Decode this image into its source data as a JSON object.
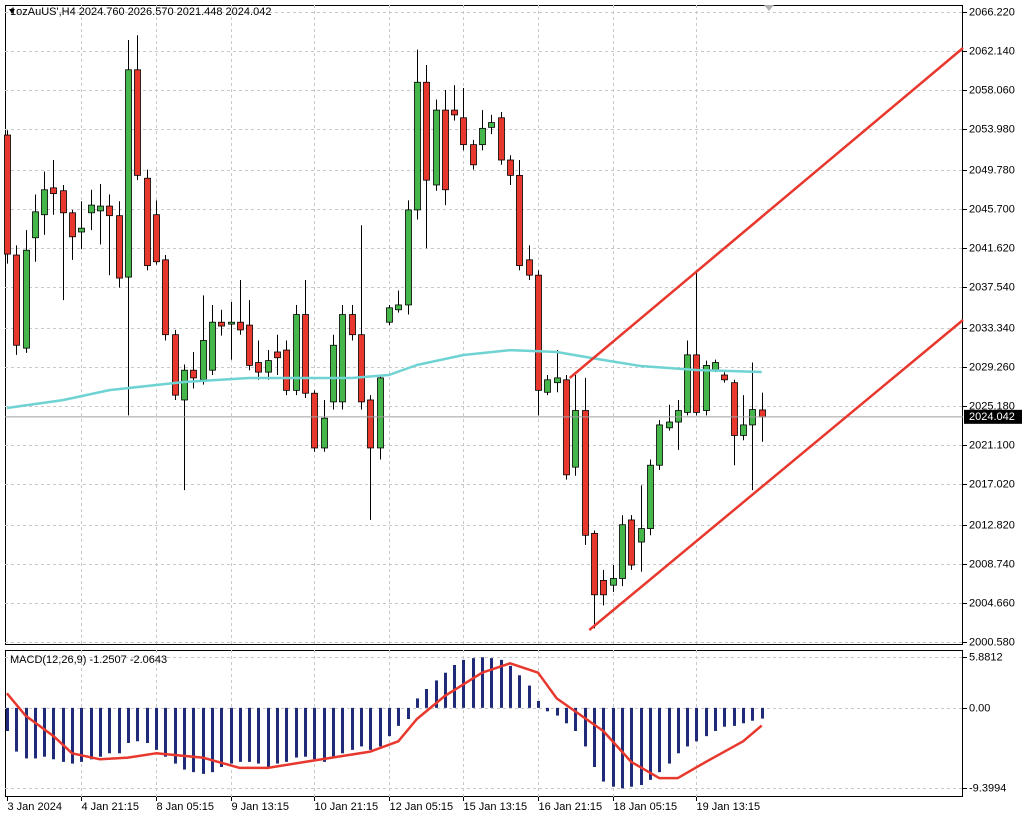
{
  "chart_data": [
    {
      "type": "candlestick",
      "title": "1ozAuUS',H4  2024.760 2026.570 2021.448 2024.042",
      "up_color": "#45b649",
      "down_color": "#e8372c",
      "xlim": [
        -0.2,
        102.6
      ],
      "ylim": [
        2000.27,
        2066.95
      ],
      "grid": true,
      "yticks": [
        {
          "value": 2066.22,
          "label": "2066.220"
        },
        {
          "value": 2062.14,
          "label": "2062.140"
        },
        {
          "value": 2058.06,
          "label": "2058.060"
        },
        {
          "value": 2053.98,
          "label": "2053.980"
        },
        {
          "value": 2049.78,
          "label": "2049.780"
        },
        {
          "value": 2045.7,
          "label": "2045.700"
        },
        {
          "value": 2041.62,
          "label": "2041.620"
        },
        {
          "value": 2037.54,
          "label": "2037.540"
        },
        {
          "value": 2033.34,
          "label": "2033.340"
        },
        {
          "value": 2029.26,
          "label": "2029.260"
        },
        {
          "value": 2025.18,
          "label": "2025.180"
        },
        {
          "value": 2021.1,
          "label": "2021.100"
        },
        {
          "value": 2017.02,
          "label": "2017.020"
        },
        {
          "value": 2012.82,
          "label": "2012.820"
        },
        {
          "value": 2008.74,
          "label": "2008.740"
        },
        {
          "value": 2004.66,
          "label": "2004.660"
        },
        {
          "value": 2000.58,
          "label": "2000.580"
        }
      ],
      "xticks": [
        {
          "value": 0,
          "label": "3 Jan 2024"
        },
        {
          "value": 8,
          "label": "4 Jan 21:15"
        },
        {
          "value": 16,
          "label": "8 Jan 05:15"
        },
        {
          "value": 24,
          "label": "9 Jan 13:15"
        },
        {
          "value": 33,
          "label": "10 Jan 21:15"
        },
        {
          "value": 41,
          "label": "12 Jan 05:15"
        },
        {
          "value": 49,
          "label": "15 Jan 13:15"
        },
        {
          "value": 57,
          "label": "16 Jan 21:15"
        },
        {
          "value": 65,
          "label": "18 Jan 05:15"
        },
        {
          "value": 74,
          "label": "19 Jan 13:15"
        }
      ],
      "last_price": 2024.042,
      "open": [
        2053.4,
        2040.9,
        2031.2,
        2042.7,
        2045.1,
        2047.9,
        2047.6,
        2045.3,
        2043.3,
        2045.3,
        2045.5,
        2046.0,
        2045.0,
        2038.6,
        2060.2,
        2048.9,
        2045.1,
        2040.4,
        2032.6,
        2025.8,
        2028.9,
        2027.9,
        2028.9,
        2033.9,
        2033.7,
        2033.9,
        2033.6,
        2029.7,
        2028.7,
        2030.8,
        2031.0,
        2026.8,
        2034.7,
        2026.5,
        2020.8,
        2025.6,
        2025.6,
        2034.7,
        2032.6,
        2025.8,
        2020.8,
        2033.9,
        2035.2,
        2035.7,
        2045.6,
        2058.9,
        2048.2,
        2056.0,
        2056.0,
        2055.2,
        2052.4,
        2052.4,
        2054.2,
        2055.2,
        2050.8,
        2049.2,
        2040.4,
        2038.8,
        2026.6,
        2027.6,
        2027.9,
        2018.8,
        2024.7,
        2011.9,
        2007.0,
        2006.5,
        2007.2,
        2013.3,
        2011.0,
        2012.4,
        2019.0,
        2022.9,
        2023.5,
        2024.5,
        2030.5,
        2024.7,
        2028.9,
        2028.4,
        2027.6,
        2022.1,
        2023.2,
        2024.76
      ],
      "high": [
        2053.9,
        2041.9,
        2043.5,
        2047.2,
        2049.6,
        2050.8,
        2048.2,
        2045.6,
        2046.5,
        2047.7,
        2048.3,
        2047.2,
        2046.5,
        2063.3,
        2063.8,
        2049.8,
        2046.6,
        2040.9,
        2033.1,
        2029.5,
        2030.8,
        2036.7,
        2035.7,
        2035.2,
        2036.0,
        2038.3,
        2036.2,
        2032.0,
        2031.0,
        2032.6,
        2032.0,
        2035.7,
        2038.3,
        2026.8,
        2025.8,
        2032.6,
        2035.7,
        2035.7,
        2044.0,
        2026.3,
        2028.4,
        2035.7,
        2037.2,
        2046.6,
        2062.3,
        2060.7,
        2057.1,
        2058.1,
        2058.6,
        2058.3,
        2052.9,
        2056.0,
        2055.5,
        2055.8,
        2051.3,
        2050.8,
        2041.9,
        2039.3,
        2028.4,
        2031.0,
        2028.4,
        2028.4,
        2028.1,
        2012.2,
        2008.1,
        2008.6,
        2013.8,
        2013.8,
        2016.9,
        2019.6,
        2023.7,
        2025.3,
        2025.8,
        2032.0,
        2039.3,
        2029.9,
        2030.0,
        2028.7,
        2027.9,
        2026.3,
        2029.7,
        2026.57
      ],
      "low": [
        2040.0,
        2030.5,
        2030.7,
        2040.2,
        2043.0,
        2045.1,
        2036.2,
        2040.4,
        2041.5,
        2043.5,
        2042.0,
        2038.8,
        2037.5,
        2024.2,
        2048.7,
        2039.3,
        2039.9,
        2032.0,
        2025.8,
        2016.4,
        2027.0,
        2027.4,
        2028.4,
        2032.5,
        2030.0,
        2032.6,
        2028.9,
        2027.9,
        2027.9,
        2028.4,
        2026.3,
        2026.3,
        2026.0,
        2020.4,
        2020.4,
        2024.8,
        2024.8,
        2032.0,
        2024.8,
        2013.3,
        2019.6,
        2033.6,
        2034.9,
        2034.7,
        2044.6,
        2041.6,
        2047.6,
        2046.1,
        2054.9,
        2051.8,
        2049.8,
        2051.8,
        2053.5,
        2050.3,
        2048.2,
        2039.3,
        2038.3,
        2024.2,
        2026.3,
        2026.6,
        2017.5,
        2017.9,
        2010.7,
        2002.0,
        2004.4,
        2005.8,
        2006.4,
        2008.1,
        2007.9,
        2011.7,
        2018.5,
        2022.6,
        2020.6,
        2024.2,
        2024.2,
        2024.2,
        2028.7,
        2027.6,
        2019.0,
        2021.6,
        2016.4,
        2021.448
      ],
      "close": [
        2041.0,
        2031.5,
        2041.4,
        2045.4,
        2047.7,
        2047.3,
        2045.3,
        2042.8,
        2043.7,
        2046.1,
        2046.0,
        2045.0,
        2038.5,
        2060.2,
        2049.2,
        2039.8,
        2040.2,
        2032.6,
        2026.3,
        2028.9,
        2028.1,
        2032.0,
        2033.9,
        2033.5,
        2033.9,
        2033.1,
        2029.4,
        2028.7,
        2029.9,
        2030.2,
        2026.8,
        2034.7,
        2026.5,
        2020.8,
        2023.9,
        2031.5,
        2034.7,
        2032.6,
        2025.6,
        2020.8,
        2028.1,
        2035.4,
        2035.7,
        2045.6,
        2058.9,
        2048.7,
        2056.0,
        2047.7,
        2055.5,
        2052.4,
        2050.3,
        2054.1,
        2054.7,
        2050.8,
        2049.2,
        2039.8,
        2038.8,
        2026.8,
        2027.9,
        2028.1,
        2018.0,
        2024.7,
        2011.7,
        2005.5,
        2005.5,
        2007.2,
        2012.8,
        2008.6,
        2012.4,
        2019.0,
        2023.2,
        2023.5,
        2024.7,
        2030.5,
        2024.5,
        2029.4,
        2029.7,
        2027.9,
        2022.1,
        2023.2,
        2024.8,
        2024.042
      ],
      "series": [
        {
          "color": "#6fd3d3",
          "x": [
            0,
            6,
            11,
            19,
            26,
            37,
            41,
            44,
            49,
            54,
            59,
            64,
            68,
            74,
            81
          ],
          "values": [
            2024.96,
            2025.79,
            2026.83,
            2027.67,
            2028.09,
            2028.09,
            2028.4,
            2029.44,
            2030.48,
            2031.0,
            2030.8,
            2029.96,
            2029.34,
            2028.92,
            2028.71
          ]
        },
        {
          "color": "#e8372c",
          "x": [
            60.4,
            102.6
          ],
          "values": [
            2028.09,
            2062.47
          ]
        },
        {
          "color": "#e8372c",
          "x": [
            62.5,
            102.6
          ],
          "values": [
            2001.83,
            2034.13
          ]
        }
      ]
    },
    {
      "type": "bar",
      "title": "MACD(12,26,9) -1.2507 -2.0643",
      "color": "#1f2a78",
      "xlim": [
        -0.2,
        102.6
      ],
      "ylim": [
        -10.4,
        6.75
      ],
      "grid": true,
      "yticks": [
        5.8812,
        {
          "value": 0,
          "label": "0.00"
        },
        -9.3994
      ],
      "values": [
        -2.7,
        -5.1,
        -5.9,
        -5.9,
        -5.7,
        -6.0,
        -6.3,
        -6.5,
        -6.3,
        -6.0,
        -5.7,
        -5.3,
        -5.3,
        -4.1,
        -3.9,
        -4.1,
        -4.9,
        -5.7,
        -6.5,
        -7.2,
        -7.5,
        -7.7,
        -7.5,
        -6.9,
        -6.5,
        -6.3,
        -6.3,
        -6.5,
        -6.9,
        -6.5,
        -6.3,
        -5.8,
        -5.7,
        -6.0,
        -6.3,
        -5.8,
        -5.3,
        -4.9,
        -4.5,
        -4.9,
        -4.5,
        -3.3,
        -2.1,
        -1.3,
        1.1,
        2.2,
        3.2,
        4.1,
        5.0,
        5.6,
        5.8,
        5.9,
        5.8,
        5.6,
        4.9,
        3.8,
        2.6,
        0.8,
        -0.4,
        -0.9,
        -1.8,
        -2.7,
        -4.5,
        -6.9,
        -8.6,
        -9.2,
        -9.4,
        -9.2,
        -9.0,
        -8.4,
        -7.5,
        -6.5,
        -5.3,
        -4.5,
        -3.9,
        -3.3,
        -2.7,
        -2.2,
        -2.1,
        -1.8,
        -1.5,
        -1.2507
      ],
      "series": [
        {
          "color": "#e8372c",
          "x": [
            0,
            2,
            5,
            7,
            10,
            13,
            16,
            21,
            25,
            28,
            32,
            39,
            42,
            44,
            47,
            51,
            54,
            57,
            59,
            64,
            67,
            70,
            72,
            75,
            79,
            81
          ],
          "values": [
            1.7,
            -0.9,
            -3.3,
            -5.3,
            -6.0,
            -5.8,
            -5.3,
            -5.8,
            -7.0,
            -7.0,
            -6.3,
            -5.1,
            -3.9,
            -1.3,
            1.4,
            4.1,
            5.2,
            4.1,
            1.1,
            -2.7,
            -6.3,
            -8.2,
            -8.2,
            -6.3,
            -3.9,
            -2.0643
          ]
        }
      ]
    }
  ]
}
